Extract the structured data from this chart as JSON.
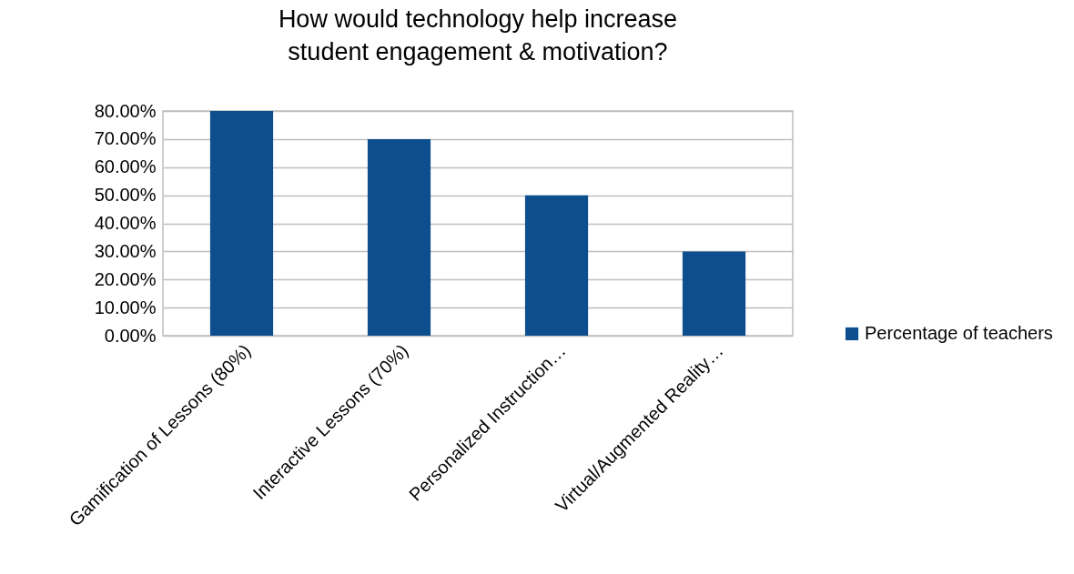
{
  "chart_data": {
    "type": "bar",
    "title": "How would technology help increase student engagement & motivation?",
    "categories": [
      "Gamification of Lessons (80%)",
      "Interactive Lessons (70%)",
      "Personalized Instruction…",
      "Virtual/Augmented Reality…"
    ],
    "series": [
      {
        "name": "Percentage of teachers",
        "color": "#0d4e8e",
        "values": [
          80,
          70,
          50,
          30
        ]
      }
    ],
    "ylim": [
      0,
      80
    ],
    "yticks": [
      {
        "value": 0,
        "label": "0.00%"
      },
      {
        "value": 10,
        "label": "10.00%"
      },
      {
        "value": 20,
        "label": "20.00%"
      },
      {
        "value": 30,
        "label": "30.00%"
      },
      {
        "value": 40,
        "label": "40.00%"
      },
      {
        "value": 50,
        "label": "50.00%"
      },
      {
        "value": 60,
        "label": "60.00%"
      },
      {
        "value": 70,
        "label": "70.00%"
      },
      {
        "value": 80,
        "label": "80.00%"
      }
    ],
    "grid": "y",
    "legend": "right"
  }
}
